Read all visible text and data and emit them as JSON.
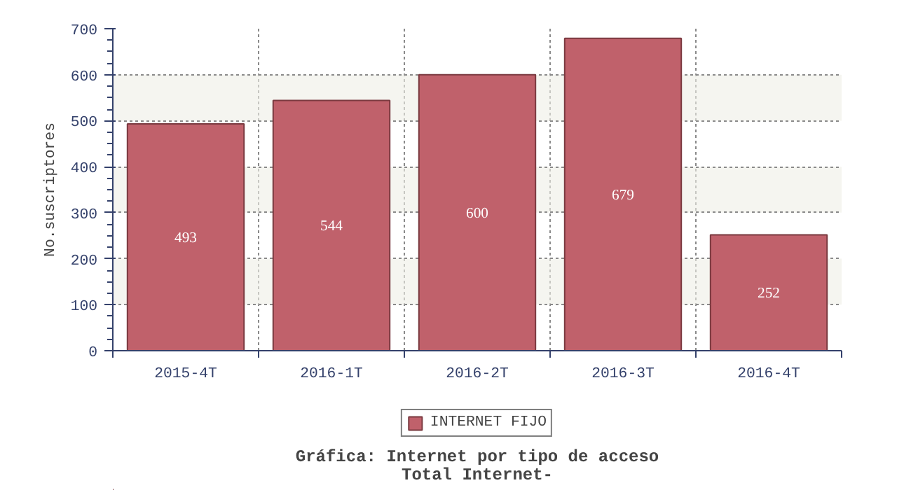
{
  "chart_data": {
    "type": "bar",
    "title": "Gráfica: Internet por tipo de acceso",
    "subtitle": "Total Internet-",
    "ylabel": "No.suscriptores",
    "categories": [
      "2015-4T",
      "2016-1T",
      "2016-2T",
      "2016-3T",
      "2016-4T"
    ],
    "series": [
      {
        "name": "INTERNET FIJO",
        "color": "#c0616b",
        "values": [
          493,
          544,
          600,
          679,
          252
        ]
      }
    ],
    "ylim": [
      0,
      700
    ],
    "yticks": [
      0,
      100,
      200,
      300,
      400,
      500,
      600,
      700
    ],
    "grid": true,
    "legend": "bottom",
    "data_labels": true
  }
}
